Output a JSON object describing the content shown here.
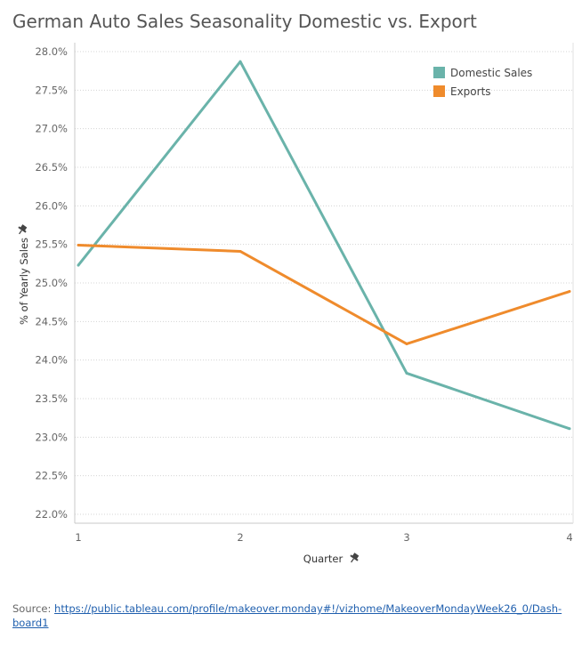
{
  "chart_data": {
    "type": "line",
    "title": "German Auto Sales Seasonality Domestic vs. Export",
    "xlabel": "Quarter",
    "ylabel": "% of Yearly Sales",
    "x": [
      1,
      2,
      3,
      4
    ],
    "x_tick_labels": [
      "1",
      "2",
      "3",
      "4"
    ],
    "ylim": [
      0.22,
      0.28
    ],
    "y_ticks": [
      0.22,
      0.225,
      0.23,
      0.235,
      0.24,
      0.245,
      0.25,
      0.255,
      0.26,
      0.265,
      0.27,
      0.275,
      0.28
    ],
    "y_tick_labels": [
      "22.0%",
      "22.5%",
      "23.0%",
      "23.5%",
      "24.0%",
      "24.5%",
      "25.0%",
      "25.5%",
      "26.0%",
      "26.5%",
      "27.0%",
      "27.5%",
      "28.0%"
    ],
    "grid": "horizontal",
    "legend_position": "top-right",
    "series": [
      {
        "name": "Domestic Sales",
        "color": "#6ab3aa",
        "values": [
          0.2523,
          0.2787,
          0.2383,
          0.2311
        ]
      },
      {
        "name": "Exports",
        "color": "#ef8b2c",
        "values": [
          0.2549,
          0.2541,
          0.2421,
          0.2489
        ]
      }
    ]
  },
  "axis_icons": {
    "x": "pin-icon",
    "y": "pin-icon"
  },
  "source": {
    "label": "Source:",
    "url_text": "https://public.tableau.com/profile/makeover.monday#!/vizhome/MakeoverMondayWeek26_0/Dash-board1"
  }
}
